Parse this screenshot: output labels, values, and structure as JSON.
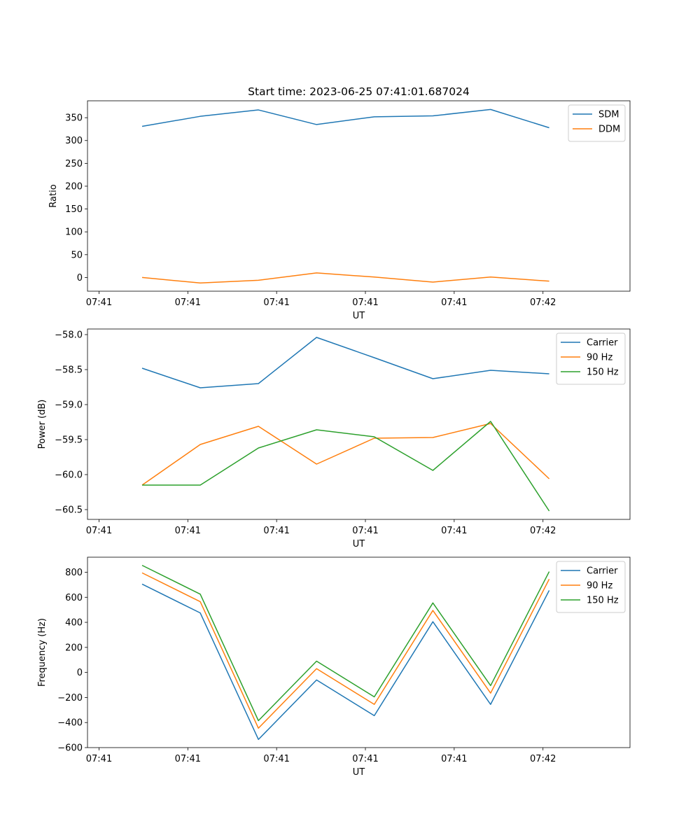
{
  "title": "Start time: 2023-06-25 07:41:01.687024",
  "chart_data": [
    {
      "type": "line",
      "ylabel": "Ratio",
      "xlabel": "UT",
      "ylim": [
        -30,
        387
      ],
      "yticks": [
        0,
        50,
        100,
        150,
        200,
        250,
        300,
        350
      ],
      "xticks": [
        0,
        1,
        2,
        3,
        4,
        5
      ],
      "xtick_labels": [
        "07:41",
        "07:41",
        "07:41",
        "07:41",
        "07:41",
        "07:42"
      ],
      "xlim": [
        -0.13,
        5.98
      ],
      "legend_position": "top-right",
      "grid": false,
      "series": [
        {
          "name": "SDM",
          "color": "#1f77b4",
          "x": [
            0.485,
            1.14,
            1.795,
            2.45,
            3.1,
            3.76,
            4.41,
            5.07
          ],
          "y": [
            331,
            353,
            367,
            335,
            352,
            354,
            368,
            328
          ]
        },
        {
          "name": "DDM",
          "color": "#ff7f0e",
          "x": [
            0.485,
            1.14,
            1.795,
            2.45,
            3.1,
            3.76,
            4.41,
            5.07
          ],
          "y": [
            0,
            -12,
            -6,
            10,
            1,
            -10,
            1,
            -8
          ]
        }
      ]
    },
    {
      "type": "line",
      "ylabel": "Power (dB)",
      "xlabel": "UT",
      "ylim": [
        -60.64,
        -57.92
      ],
      "yticks": [
        -60.5,
        -60.0,
        -59.5,
        -59.0,
        -58.5,
        -58.0
      ],
      "ytick_labels": [
        "−60.5",
        "−60.0",
        "−59.5",
        "−59.0",
        "−58.5",
        "−58.0"
      ],
      "xticks": [
        0,
        1,
        2,
        3,
        4,
        5
      ],
      "xtick_labels": [
        "07:41",
        "07:41",
        "07:41",
        "07:41",
        "07:41",
        "07:42"
      ],
      "xlim": [
        -0.13,
        5.98
      ],
      "legend_position": "top-right",
      "grid": false,
      "series": [
        {
          "name": "Carrier",
          "color": "#1f77b4",
          "x": [
            0.485,
            1.14,
            1.795,
            2.45,
            3.1,
            3.76,
            4.41,
            5.07
          ],
          "y": [
            -58.48,
            -58.76,
            -58.7,
            -58.04,
            -58.33,
            -58.63,
            -58.51,
            -58.56
          ]
        },
        {
          "name": "90 Hz",
          "color": "#ff7f0e",
          "x": [
            0.485,
            1.14,
            1.795,
            2.45,
            3.1,
            3.76,
            4.41,
            5.07
          ],
          "y": [
            -60.15,
            -59.57,
            -59.31,
            -59.85,
            -59.48,
            -59.47,
            -59.27,
            -60.06
          ]
        },
        {
          "name": "150 Hz",
          "color": "#2ca02c",
          "x": [
            0.485,
            1.14,
            1.795,
            2.45,
            3.1,
            3.76,
            4.41,
            5.07
          ],
          "y": [
            -60.15,
            -60.15,
            -59.62,
            -59.36,
            -59.46,
            -59.94,
            -59.24,
            -60.52
          ]
        }
      ]
    },
    {
      "type": "line",
      "ylabel": "Frequency (Hz)",
      "xlabel": "UT",
      "ylim": [
        -600,
        920
      ],
      "yticks": [
        -600,
        -400,
        -200,
        0,
        200,
        400,
        600,
        800
      ],
      "ytick_labels": [
        "−600",
        "−400",
        "−200",
        "0",
        "200",
        "400",
        "600",
        "800"
      ],
      "xticks": [
        0,
        1,
        2,
        3,
        4,
        5
      ],
      "xtick_labels": [
        "07:41",
        "07:41",
        "07:41",
        "07:41",
        "07:41",
        "07:42"
      ],
      "xlim": [
        -0.13,
        5.98
      ],
      "legend_position": "top-right",
      "grid": false,
      "series": [
        {
          "name": "Carrier",
          "color": "#1f77b4",
          "x": [
            0.485,
            1.14,
            1.795,
            2.45,
            3.1,
            3.76,
            4.41,
            5.07
          ],
          "y": [
            705,
            475,
            -535,
            -60,
            -345,
            405,
            -255,
            655
          ]
        },
        {
          "name": "90 Hz",
          "color": "#ff7f0e",
          "x": [
            0.485,
            1.14,
            1.795,
            2.45,
            3.1,
            3.76,
            4.41,
            5.07
          ],
          "y": [
            795,
            565,
            -445,
            30,
            -255,
            495,
            -165,
            745
          ]
        },
        {
          "name": "150 Hz",
          "color": "#2ca02c",
          "x": [
            0.485,
            1.14,
            1.795,
            2.45,
            3.1,
            3.76,
            4.41,
            5.07
          ],
          "y": [
            855,
            625,
            -385,
            90,
            -195,
            555,
            -105,
            805
          ]
        }
      ]
    }
  ]
}
